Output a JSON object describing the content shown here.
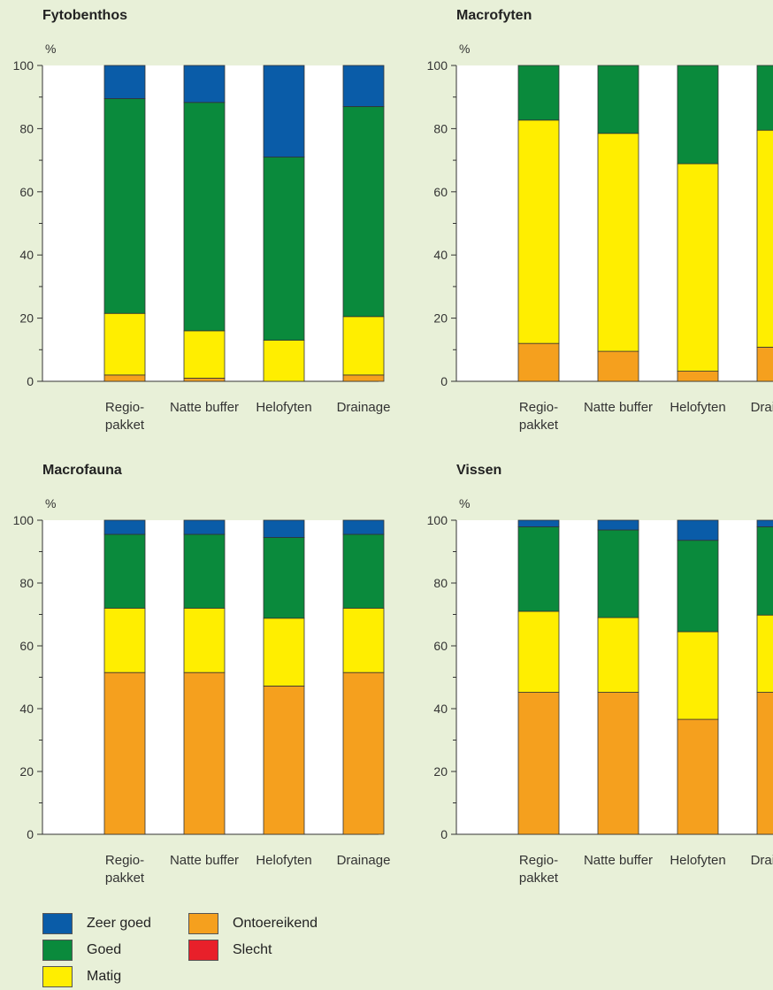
{
  "categories_colors": {
    "Zeer goed": "#0a5ca8",
    "Goed": "#0a8a3c",
    "Matig": "#ffee00",
    "Ontoereikend": "#f5a01e",
    "Slecht": "#e8202a"
  },
  "chart_data": [
    {
      "type": "bar",
      "stacked": true,
      "title": "Fytobenthos",
      "ylabel": "%",
      "ylim": [
        0,
        100
      ],
      "yticks": [
        "0",
        "20",
        "40",
        "60",
        "80",
        "100"
      ],
      "categories": [
        "Regio-\npakket",
        "Natte buffer",
        "Helofyten",
        "Drainage"
      ],
      "category_lines": [
        [
          "Regio-",
          "pakket"
        ],
        [
          "Natte buffer"
        ],
        [
          "Helofyten"
        ],
        [
          "Drainage"
        ]
      ],
      "series": [
        {
          "name": "Ontoereikend",
          "values": [
            2,
            1,
            0,
            2
          ]
        },
        {
          "name": "Matig",
          "values": [
            19.5,
            15,
            13,
            18.5
          ]
        },
        {
          "name": "Goed",
          "values": [
            68,
            72.3,
            58,
            66.5
          ]
        },
        {
          "name": "Zeer goed",
          "values": [
            10.5,
            11.7,
            29,
            13
          ]
        }
      ]
    },
    {
      "type": "bar",
      "stacked": true,
      "title": "Macrofyten",
      "ylabel": "%",
      "ylim": [
        0,
        100
      ],
      "yticks": [
        "0",
        "20",
        "40",
        "60",
        "80",
        "100"
      ],
      "categories": [
        "Regio-\npakket",
        "Natte buffer",
        "Helofyten",
        "Drainage"
      ],
      "category_lines": [
        [
          "Regio-",
          "pakket"
        ],
        [
          "Natte buffer"
        ],
        [
          "Helofyten"
        ],
        [
          "Drainage"
        ]
      ],
      "series": [
        {
          "name": "Ontoereikend",
          "values": [
            12,
            9.5,
            3.2,
            10.8
          ]
        },
        {
          "name": "Matig",
          "values": [
            70.7,
            69,
            65.7,
            68.7
          ]
        },
        {
          "name": "Goed",
          "values": [
            17.3,
            21.5,
            31.1,
            20.5
          ]
        }
      ]
    },
    {
      "type": "bar",
      "stacked": true,
      "title": "Macrofauna",
      "ylabel": "%",
      "ylim": [
        0,
        100
      ],
      "yticks": [
        "0",
        "20",
        "40",
        "60",
        "80",
        "100"
      ],
      "categories": [
        "Regio-\npakket",
        "Natte buffer",
        "Helofyten",
        "Drainage"
      ],
      "category_lines": [
        [
          "Regio-",
          "pakket"
        ],
        [
          "Natte buffer"
        ],
        [
          "Helofyten"
        ],
        [
          "Drainage"
        ]
      ],
      "series": [
        {
          "name": "Ontoereikend",
          "values": [
            51.5,
            51.5,
            47.2,
            51.5
          ]
        },
        {
          "name": "Matig",
          "values": [
            20.5,
            20.5,
            21.6,
            20.5
          ]
        },
        {
          "name": "Goed",
          "values": [
            23.5,
            23.5,
            25.7,
            23.5
          ]
        },
        {
          "name": "Zeer goed",
          "values": [
            4.5,
            4.5,
            5.5,
            4.5
          ]
        }
      ]
    },
    {
      "type": "bar",
      "stacked": true,
      "title": "Vissen",
      "ylabel": "%",
      "ylim": [
        0,
        100
      ],
      "yticks": [
        "0",
        "20",
        "40",
        "60",
        "80",
        "100"
      ],
      "categories": [
        "Regio-\npakket",
        "Natte buffer",
        "Helofyten",
        "Drainage"
      ],
      "category_lines": [
        [
          "Regio-",
          "pakket"
        ],
        [
          "Natte buffer"
        ],
        [
          "Helofyten"
        ],
        [
          "Drainage"
        ]
      ],
      "series": [
        {
          "name": "Ontoereikend",
          "values": [
            45.2,
            45.2,
            36.6,
            45.2
          ]
        },
        {
          "name": "Matig",
          "values": [
            25.8,
            23.8,
            27.9,
            24.6
          ]
        },
        {
          "name": "Goed",
          "values": [
            26.9,
            27.9,
            29.1,
            28.1
          ]
        },
        {
          "name": "Zeer goed",
          "values": [
            2.1,
            3.1,
            6.4,
            2.1
          ]
        }
      ]
    }
  ],
  "legend": {
    "items": [
      {
        "label": "Zeer goed",
        "color": "#0a5ca8"
      },
      {
        "label": "Goed",
        "color": "#0a8a3c"
      },
      {
        "label": "Matig",
        "color": "#ffee00"
      },
      {
        "label": "Ontoereikend",
        "color": "#f5a01e"
      },
      {
        "label": "Slecht",
        "color": "#e8202a"
      }
    ]
  }
}
